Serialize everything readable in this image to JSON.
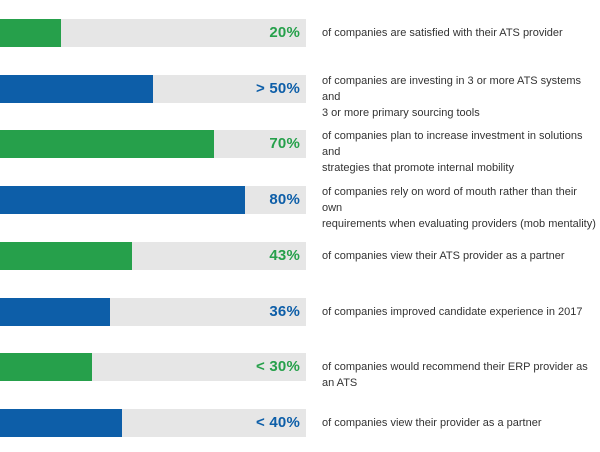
{
  "chart_data": {
    "type": "bar",
    "orientation": "horizontal",
    "xlim": [
      0,
      100
    ],
    "grid": false,
    "legend": "none",
    "colors": {
      "green": "#26a04b",
      "blue": "#0d5ea8",
      "track": "#e6e6e6"
    },
    "items": [
      {
        "label": "20%",
        "value": 20,
        "color": "green",
        "text": "of companies are satisfied with their ATS provider"
      },
      {
        "label": "> 50%",
        "value": 50,
        "color": "blue",
        "text": "of companies are investing in 3 or more ATS systems and\n3 or more primary sourcing tools"
      },
      {
        "label": "70%",
        "value": 70,
        "color": "green",
        "text": "of companies plan to increase investment in solutions and\nstrategies that promote internal mobility"
      },
      {
        "label": "80%",
        "value": 80,
        "color": "blue",
        "text": "of companies rely on word of mouth rather than their own\nrequirements when evaluating providers (mob mentality)"
      },
      {
        "label": "43%",
        "value": 43,
        "color": "green",
        "text": "of companies view their ATS provider as a partner"
      },
      {
        "label": "36%",
        "value": 36,
        "color": "blue",
        "text": "of companies improved candidate experience in 2017"
      },
      {
        "label": "< 30%",
        "value": 30,
        "color": "green",
        "text": "of companies would recommend their ERP provider as an ATS"
      },
      {
        "label": "< 40%",
        "value": 40,
        "color": "blue",
        "text": "of companies view their provider as a partner"
      }
    ]
  }
}
